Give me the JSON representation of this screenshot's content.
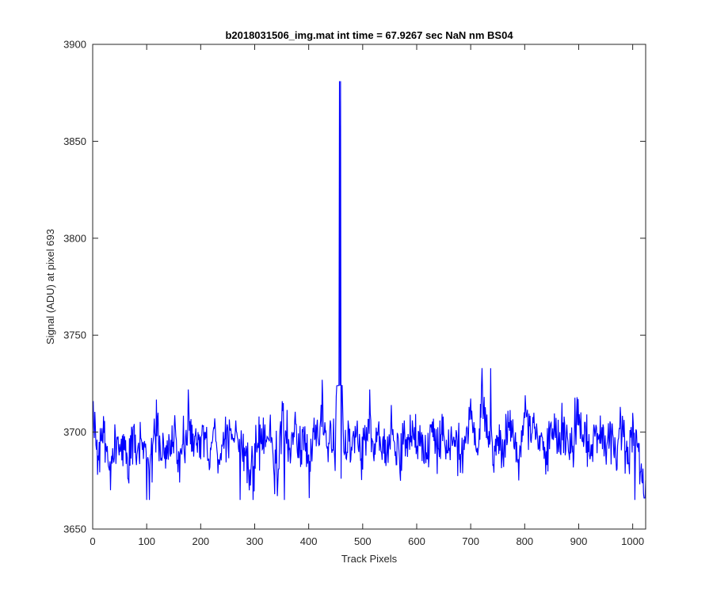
{
  "chart_data": {
    "type": "line",
    "title": "b2018031506_img.mat int time = 67.9267 sec  NaN nm BS04",
    "xlabel": "Track Pixels",
    "ylabel": "Signal (ADU) at pixel 693",
    "xlim": [
      0,
      1024
    ],
    "ylim": [
      3650,
      3900
    ],
    "x_ticks": [
      0,
      100,
      200,
      300,
      400,
      500,
      600,
      700,
      800,
      900,
      1000
    ],
    "y_ticks": [
      3650,
      3700,
      3750,
      3800,
      3850,
      3900
    ],
    "grid": false,
    "line_color": "#0000ff",
    "series": [
      {
        "x_start": 1,
        "x_step": 8,
        "values": [
          3716,
          3678,
          3702,
          3692,
          3670,
          3704,
          3688,
          3699,
          3676,
          3701,
          3683,
          3697,
          3692,
          3665,
          3699,
          3710,
          3688,
          3686,
          3696,
          3703,
          3674,
          3692,
          3722,
          3690,
          3694,
          3698,
          3700,
          3682,
          3702,
          3686,
          3694,
          3704,
          3696,
          3706,
          3683,
          3692,
          3677,
          3665,
          3692,
          3702,
          3696,
          3709,
          3668,
          3681,
          3715,
          3692,
          3700,
          3704,
          3682,
          3703,
          3666,
          3700,
          3698,
          3727,
          3693,
          3704,
          3680,
          3881,
          3690,
          3706,
          3697,
          3702,
          3686,
          3696,
          3722,
          3685,
          3703,
          3696,
          3690,
          3714,
          3690,
          3679,
          3706,
          3696,
          3702,
          3693,
          3700,
          3684,
          3704,
          3702,
          3691,
          3708,
          3690,
          3697,
          3701,
          3679,
          3698,
          3713,
          3701,
          3688,
          3733,
          3697,
          3700,
          3690,
          3704,
          3682,
          3711,
          3700,
          3695,
          3687,
          3719,
          3703,
          3710,
          3691,
          3697,
          3683,
          3705,
          3697,
          3700,
          3708,
          3690,
          3693,
          3718,
          3699,
          3700,
          3686,
          3702,
          3697,
          3704,
          3695,
          3700,
          3686,
          3713,
          3697,
          3684,
          3705,
          3692,
          3666
        ],
        "spikes": [
          [
            100,
            3665
          ],
          [
            273,
            3665
          ],
          [
            355,
            3665
          ],
          [
            459,
            3881
          ],
          [
            460,
            3676
          ],
          [
            737,
            3733
          ],
          [
            1004,
            3665
          ]
        ]
      }
    ]
  }
}
